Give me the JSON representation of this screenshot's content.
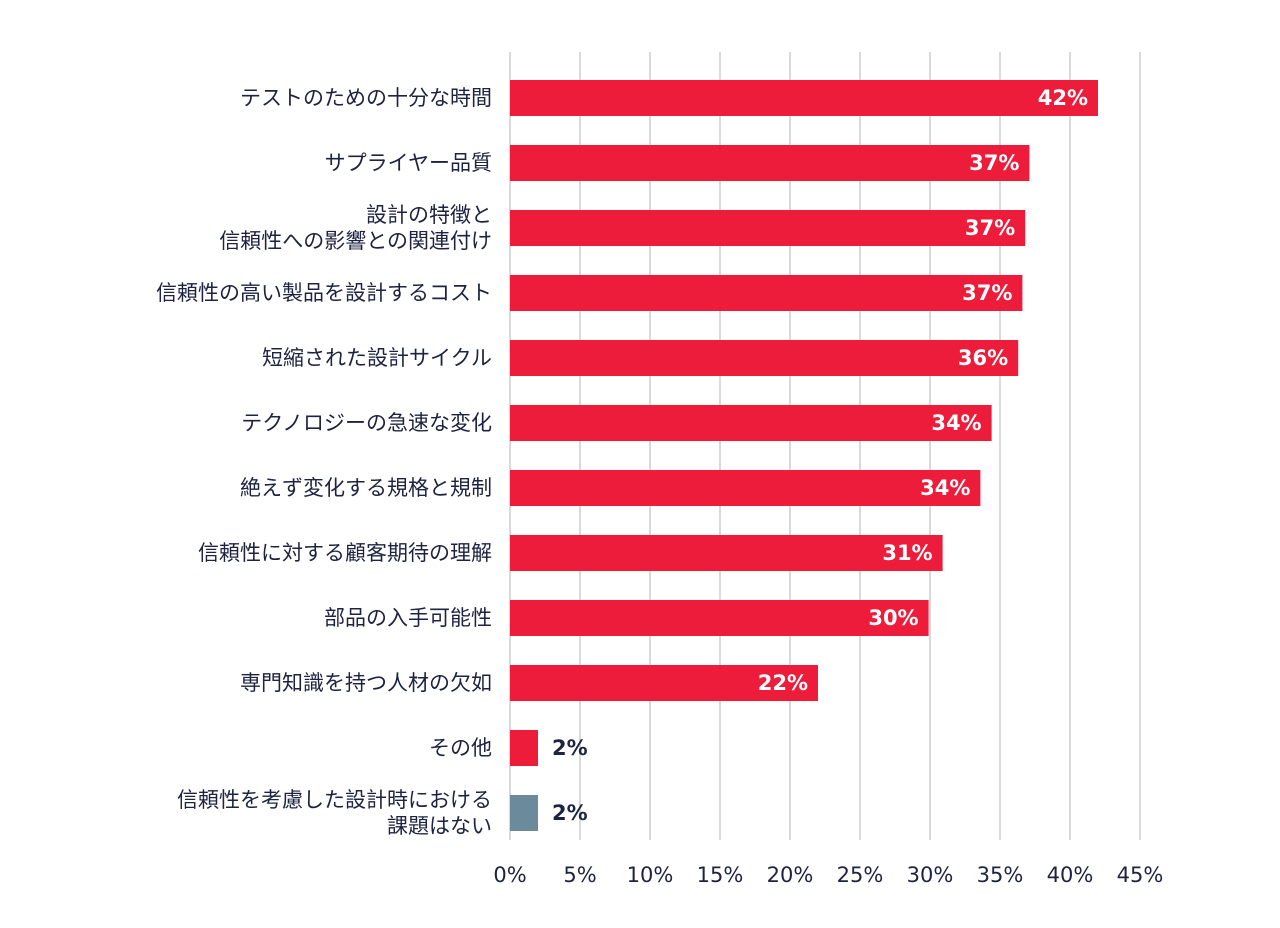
{
  "chart_data": {
    "type": "bar",
    "orientation": "horizontal",
    "categories": [
      "テストのための十分な時間",
      "サプライヤー品質",
      "設計の特徴と\n信頼性への影響との関連付け",
      "信頼性の高い製品を設計するコスト",
      "短縮された設計サイクル",
      "テクノロジーの急速な変化",
      "絶えず変化する規格と規制",
      "信頼性に対する顧客期待の理解",
      "部品の入手可能性",
      "専門知識を持つ人材の欠如",
      "その他",
      "信頼性を考慮した設計時における\n課題はない"
    ],
    "values": [
      42,
      37.1,
      36.8,
      36.6,
      36.3,
      34.4,
      33.6,
      30.9,
      29.9,
      22,
      2,
      2
    ],
    "value_labels": [
      "42%",
      "37%",
      "37%",
      "37%",
      "36%",
      "34%",
      "34%",
      "31%",
      "30%",
      "22%",
      "2%",
      "2%"
    ],
    "colors": [
      "#ed1c3a",
      "#ed1c3a",
      "#ed1c3a",
      "#ed1c3a",
      "#ed1c3a",
      "#ed1c3a",
      "#ed1c3a",
      "#ed1c3a",
      "#ed1c3a",
      "#ed1c3a",
      "#ed1c3a",
      "#6b8a9c"
    ],
    "xlim": [
      0,
      45
    ],
    "xticks": [
      {
        "value": 0,
        "label": "0%"
      },
      {
        "value": 5,
        "label": "5%"
      },
      {
        "value": 10,
        "label": "10%"
      },
      {
        "value": 15,
        "label": "15%"
      },
      {
        "value": 20,
        "label": "20%"
      },
      {
        "value": 25,
        "label": "25%"
      },
      {
        "value": 30,
        "label": "30%"
      },
      {
        "value": 35,
        "label": "35%"
      },
      {
        "value": 40,
        "label": "40%"
      },
      {
        "value": 45,
        "label": "45%"
      }
    ],
    "grid": true
  }
}
